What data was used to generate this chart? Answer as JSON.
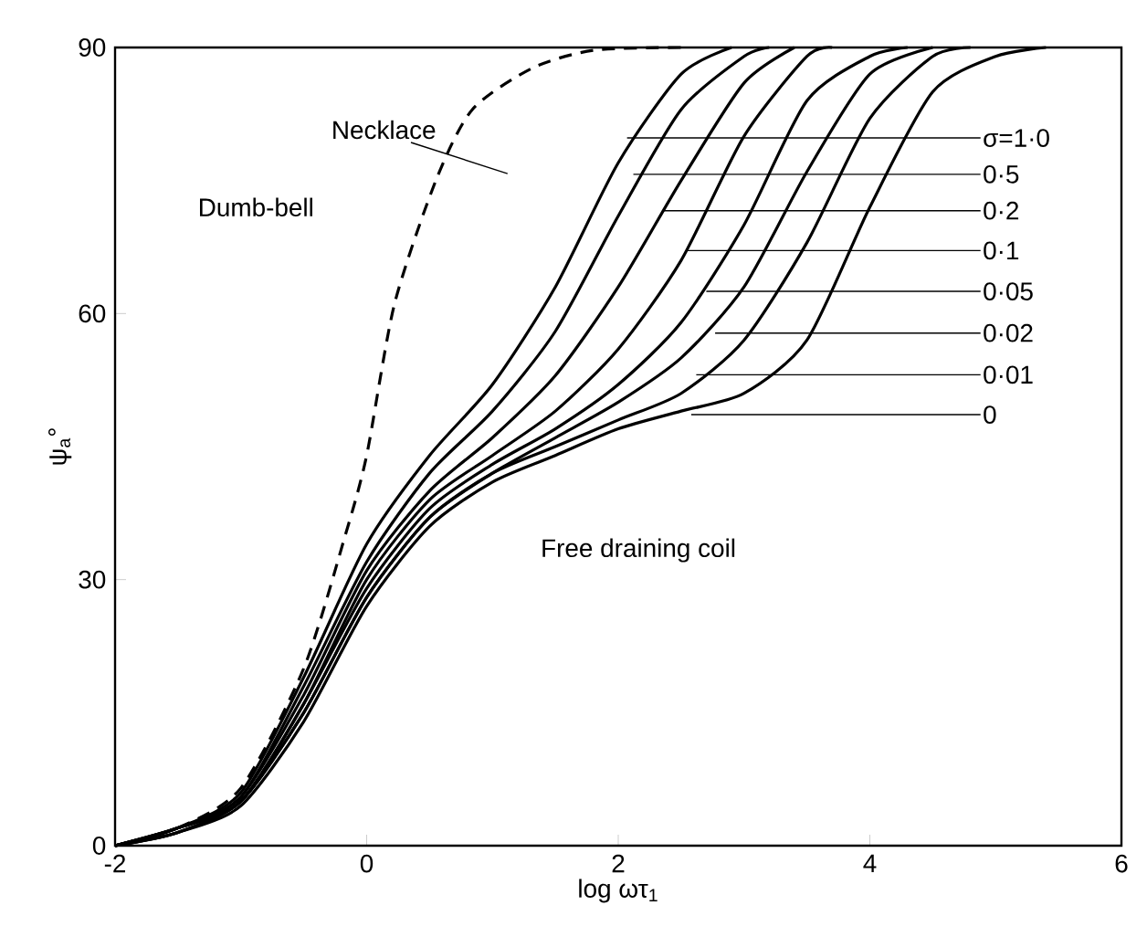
{
  "chart_data": {
    "type": "line",
    "xlabel": "log ωτ$_{1}$",
    "ylabel": "ψ$_{a}$°",
    "series": [
      {
        "color": "#000000",
        "line_style": "dashed",
        "x": [
          -2,
          -1.5,
          -1,
          -0.5,
          -0.17,
          0,
          0.22,
          0.55,
          0.84,
          1.32,
          1.81,
          2.5
        ],
        "values": [
          0,
          2,
          6.5,
          20,
          35,
          44,
          61,
          75,
          83,
          87.7,
          89.7,
          90
        ]
      },
      {
        "color": "#000000",
        "x": [
          -2,
          -1.5,
          -1,
          -0.5,
          0,
          0.5,
          1,
          1.5,
          2,
          2.5,
          2.9
        ],
        "values": [
          0,
          2,
          6,
          19,
          34,
          44,
          52,
          63,
          77,
          87,
          90
        ]
      },
      {
        "color": "#000000",
        "x": [
          -2,
          -1.5,
          -1,
          -0.5,
          0,
          0.5,
          1,
          1.5,
          2,
          2.5,
          3,
          3.2
        ],
        "values": [
          0,
          2,
          5.5,
          18,
          32,
          42,
          49,
          58,
          71,
          83,
          89,
          90
        ]
      },
      {
        "color": "#000000",
        "x": [
          -2,
          -1.5,
          -1,
          -0.5,
          0,
          0.5,
          1,
          1.5,
          2,
          2.5,
          3,
          3.4
        ],
        "values": [
          0,
          2,
          5.5,
          17,
          31,
          40,
          46,
          53,
          63,
          75,
          86,
          90
        ]
      },
      {
        "color": "#000000",
        "x": [
          -2,
          -1.5,
          -1,
          -0.5,
          0,
          0.5,
          1,
          1.5,
          2,
          2.5,
          3,
          3.5,
          3.7
        ],
        "values": [
          0,
          2,
          5,
          16,
          30,
          39,
          44,
          49,
          56,
          66,
          80,
          89,
          90
        ]
      },
      {
        "color": "#000000",
        "x": [
          -2,
          -1.5,
          -1,
          -0.5,
          0,
          0.5,
          1,
          1.5,
          2,
          2.5,
          3,
          3.5,
          4,
          4.3
        ],
        "values": [
          0,
          2,
          5,
          16,
          29,
          38,
          43,
          47,
          52,
          59,
          70,
          84,
          89,
          90
        ]
      },
      {
        "color": "#000000",
        "x": [
          -2,
          -1.5,
          -1,
          -0.5,
          0,
          0.5,
          1,
          1.5,
          2,
          2.5,
          3,
          3.5,
          4,
          4.5
        ],
        "values": [
          0,
          1.5,
          5,
          15,
          28,
          37,
          42,
          46,
          50,
          55,
          63,
          76,
          87,
          90
        ]
      },
      {
        "color": "#000000",
        "x": [
          -2,
          -1.5,
          -1,
          -0.5,
          0,
          0.5,
          1,
          1.5,
          2,
          2.5,
          3,
          3.5,
          4,
          4.5,
          4.8
        ],
        "values": [
          0,
          1.5,
          5,
          15,
          28,
          37,
          42,
          45,
          48,
          51,
          57,
          68,
          82,
          89,
          90
        ]
      },
      {
        "color": "#000000",
        "x": [
          -2,
          -1.5,
          -1,
          -0.5,
          0,
          0.5,
          1,
          1.5,
          2,
          2.5,
          3,
          3.5,
          4,
          4.5,
          5,
          5.4
        ],
        "values": [
          0,
          1.5,
          4.5,
          14,
          27,
          36,
          41,
          44,
          47,
          49,
          51,
          57,
          72,
          85,
          89,
          90
        ]
      }
    ],
    "annotations": [
      "Necklace",
      "Dumb-bell",
      "Free draining coil",
      {
        "text": "σ=1·0",
        "x": 2.07,
        "y": 79.8
      },
      {
        "text": "0·5",
        "x": 2.12,
        "y": 75.7
      },
      {
        "text": "0·2",
        "x": 2.36,
        "y": 71.6
      },
      {
        "text": "0·1",
        "x": 2.55,
        "y": 67.1
      },
      {
        "text": "0·05",
        "x": 2.7,
        "y": 62.5
      },
      {
        "text": "0·02",
        "x": 2.77,
        "y": 57.8
      },
      {
        "text": "0·01",
        "x": 2.62,
        "y": 53.1
      },
      {
        "text": "0",
        "x": 2.58,
        "y": 48.6
      }
    ],
    "xlim": [
      -2,
      6
    ],
    "ylim": [
      0,
      90
    ],
    "xticks": [
      -2,
      0,
      2,
      4,
      6
    ],
    "yticks": [
      0,
      30,
      60,
      90
    ],
    "marker": "none",
    "line_style": "solid",
    "grid": false
  }
}
